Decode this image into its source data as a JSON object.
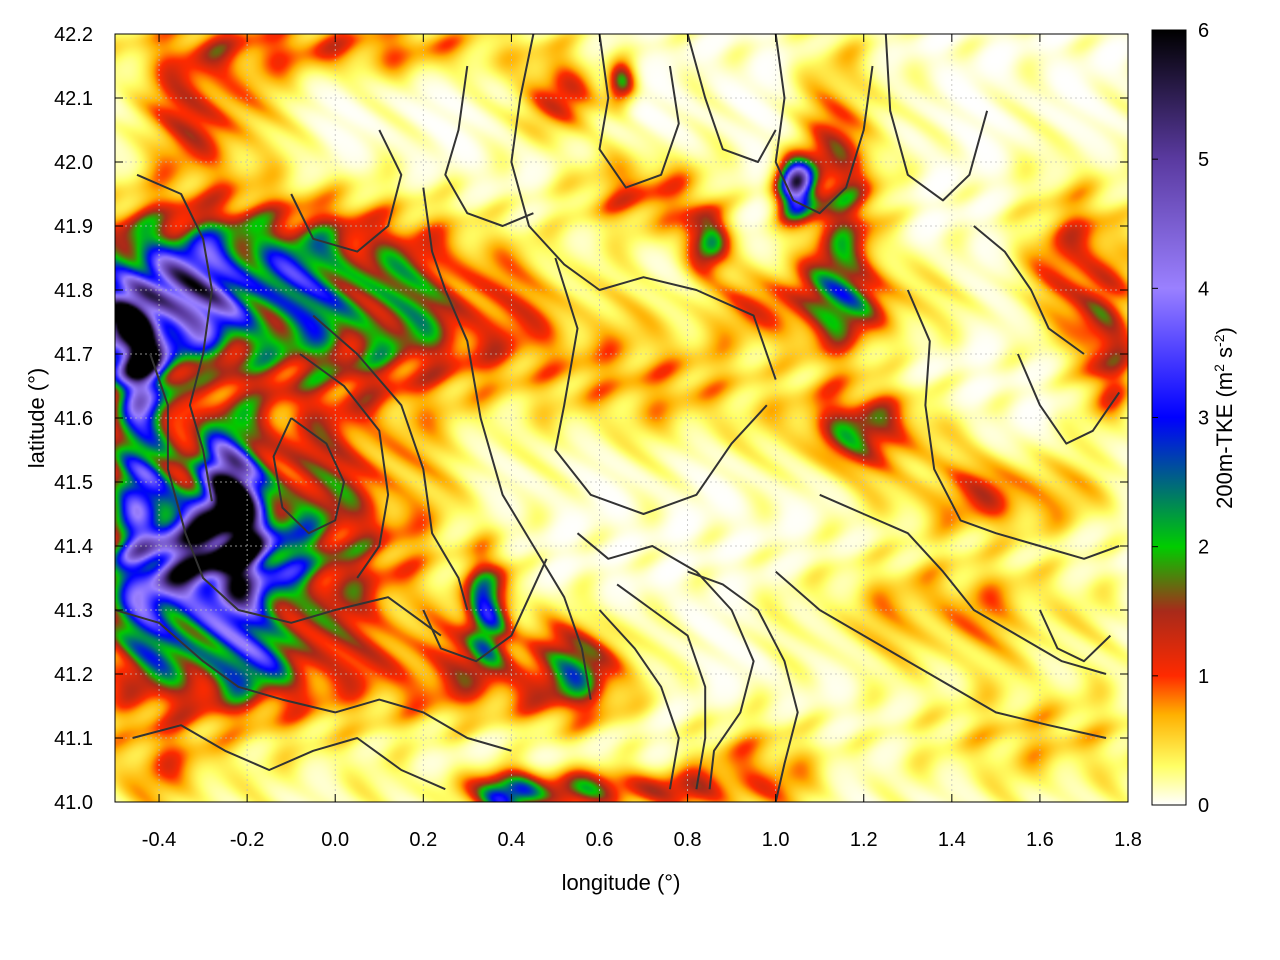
{
  "chart_data": {
    "type": "heatmap",
    "xlabel": "longitude (°)",
    "ylabel": "latitude (°)",
    "xlim": [
      -0.5,
      1.8
    ],
    "ylim": [
      41.0,
      42.2
    ],
    "xticks": [
      -0.4,
      -0.2,
      0.0,
      0.2,
      0.4,
      0.6,
      0.8,
      1.0,
      1.2,
      1.4,
      1.6,
      1.8
    ],
    "xtick_labels": [
      "-0.4",
      "-0.2",
      "0.0",
      "0.2",
      "0.4",
      "0.6",
      "0.8",
      "1.0",
      "1.2",
      "1.4",
      "1.6",
      "1.8"
    ],
    "yticks": [
      41.0,
      41.1,
      41.2,
      41.3,
      41.4,
      41.5,
      41.6,
      41.7,
      41.8,
      41.9,
      42.0,
      42.1,
      42.2
    ],
    "ytick_labels": [
      "41.0",
      "41.1",
      "41.2",
      "41.3",
      "41.4",
      "41.5",
      "41.6",
      "41.7",
      "41.8",
      "41.9",
      "42.0",
      "42.1",
      "42.2"
    ],
    "grid": true,
    "colorbar": {
      "label_main": "200m-TKE (m",
      "label_sup1": "2",
      "label_mid": " s",
      "label_sup2": "-2",
      "label_end": ")",
      "range": [
        0,
        6
      ],
      "ticks": [
        0,
        1,
        2,
        3,
        4,
        5,
        6
      ],
      "tick_labels": [
        "0",
        "1",
        "2",
        "3",
        "4",
        "5",
        "6"
      ],
      "stops": [
        {
          "v": 0.0,
          "c": "#ffffff"
        },
        {
          "v": 0.3,
          "c": "#ffff66"
        },
        {
          "v": 0.7,
          "c": "#ffb000"
        },
        {
          "v": 1.0,
          "c": "#ff2a00"
        },
        {
          "v": 1.5,
          "c": "#a82a1a"
        },
        {
          "v": 2.0,
          "c": "#00cc00"
        },
        {
          "v": 3.0,
          "c": "#0000ff"
        },
        {
          "v": 4.0,
          "c": "#9a80ff"
        },
        {
          "v": 5.0,
          "c": "#5a3aa0"
        },
        {
          "v": 6.0,
          "c": "#000000"
        }
      ]
    },
    "field_blobs": [
      {
        "lon": -0.46,
        "lat": 41.72,
        "a": 5.8,
        "rx": 0.04,
        "ry": 0.05
      },
      {
        "lon": -0.24,
        "lat": 41.46,
        "a": 5.6,
        "rx": 0.05,
        "ry": 0.08
      },
      {
        "lon": -0.37,
        "lat": 41.78,
        "a": 3.2,
        "rx": 0.12,
        "ry": 0.06
      },
      {
        "lon": -0.18,
        "lat": 41.85,
        "a": 2.0,
        "rx": 0.28,
        "ry": 0.06
      },
      {
        "lon": 0.05,
        "lat": 41.74,
        "a": 1.6,
        "rx": 0.32,
        "ry": 0.07
      },
      {
        "lon": -0.28,
        "lat": 41.38,
        "a": 4.0,
        "rx": 0.12,
        "ry": 0.06
      },
      {
        "lon": -0.43,
        "lat": 41.55,
        "a": 3.0,
        "rx": 0.05,
        "ry": 0.15
      },
      {
        "lon": -0.4,
        "lat": 41.28,
        "a": 1.8,
        "rx": 0.1,
        "ry": 0.1
      },
      {
        "lon": -0.05,
        "lat": 41.42,
        "a": 1.5,
        "rx": 0.18,
        "ry": 0.18
      },
      {
        "lon": -0.2,
        "lat": 41.22,
        "a": 2.0,
        "rx": 0.1,
        "ry": 0.05
      },
      {
        "lon": -0.3,
        "lat": 42.08,
        "a": 1.2,
        "rx": 0.1,
        "ry": 0.08
      },
      {
        "lon": 0.35,
        "lat": 41.3,
        "a": 3.2,
        "rx": 0.03,
        "ry": 0.05
      },
      {
        "lon": 0.55,
        "lat": 41.2,
        "a": 1.8,
        "rx": 0.08,
        "ry": 0.05
      },
      {
        "lon": 0.4,
        "lat": 41.01,
        "a": 3.5,
        "rx": 0.04,
        "ry": 0.02
      },
      {
        "lon": 0.6,
        "lat": 41.02,
        "a": 1.6,
        "rx": 0.2,
        "ry": 0.02
      },
      {
        "lon": 1.05,
        "lat": 41.96,
        "a": 4.5,
        "rx": 0.03,
        "ry": 0.03
      },
      {
        "lon": 1.15,
        "lat": 41.92,
        "a": 1.5,
        "rx": 0.06,
        "ry": 0.15
      },
      {
        "lon": 0.84,
        "lat": 41.88,
        "a": 2.8,
        "rx": 0.03,
        "ry": 0.03
      },
      {
        "lon": 1.1,
        "lat": 41.78,
        "a": 1.3,
        "rx": 0.15,
        "ry": 0.04
      },
      {
        "lon": 1.2,
        "lat": 41.58,
        "a": 1.6,
        "rx": 0.1,
        "ry": 0.04
      },
      {
        "lon": 1.75,
        "lat": 41.72,
        "a": 1.6,
        "rx": 0.04,
        "ry": 0.08
      },
      {
        "lon": 1.68,
        "lat": 41.85,
        "a": 1.0,
        "rx": 0.08,
        "ry": 0.08
      },
      {
        "lon": 0.5,
        "lat": 42.1,
        "a": 1.5,
        "rx": 0.05,
        "ry": 0.04
      },
      {
        "lon": 0.65,
        "lat": 42.12,
        "a": 2.0,
        "rx": 0.02,
        "ry": 0.02
      },
      {
        "lon": 0.0,
        "lat": 42.18,
        "a": 0.9,
        "rx": 0.3,
        "ry": 0.03
      },
      {
        "lon": 0.7,
        "lat": 41.95,
        "a": 1.0,
        "rx": 0.1,
        "ry": 0.04
      },
      {
        "lon": 1.5,
        "lat": 41.48,
        "a": 1.0,
        "rx": 0.15,
        "ry": 0.04
      },
      {
        "lon": 0.3,
        "lat": 41.2,
        "a": 1.0,
        "rx": 0.15,
        "ry": 0.05
      },
      {
        "lon": 0.95,
        "lat": 41.05,
        "a": 0.8,
        "rx": 0.1,
        "ry": 0.05
      },
      {
        "lon": -0.4,
        "lat": 41.05,
        "a": 0.6,
        "rx": 0.1,
        "ry": 0.05
      },
      {
        "lon": 1.4,
        "lat": 41.3,
        "a": 0.7,
        "rx": 0.2,
        "ry": 0.06
      },
      {
        "lon": 1.6,
        "lat": 41.1,
        "a": 0.5,
        "rx": 0.2,
        "ry": 0.06
      },
      {
        "lon": 0.75,
        "lat": 41.65,
        "a": 0.6,
        "rx": 0.2,
        "ry": 0.06
      }
    ],
    "contours": [
      [
        [
          -0.05,
          41.76
        ],
        [
          0.05,
          41.7
        ],
        [
          0.15,
          41.62
        ],
        [
          0.2,
          41.52
        ],
        [
          0.22,
          41.42
        ],
        [
          0.28,
          41.35
        ],
        [
          0.3,
          41.3
        ]
      ],
      [
        [
          -0.08,
          41.7
        ],
        [
          0.02,
          41.65
        ],
        [
          0.1,
          41.58
        ],
        [
          0.12,
          41.48
        ],
        [
          0.1,
          41.4
        ],
        [
          0.05,
          41.35
        ]
      ],
      [
        [
          -0.45,
          41.98
        ],
        [
          -0.35,
          41.95
        ],
        [
          -0.3,
          41.88
        ],
        [
          -0.28,
          41.8
        ],
        [
          -0.3,
          41.7
        ],
        [
          -0.33,
          41.62
        ],
        [
          -0.3,
          41.55
        ],
        [
          -0.28,
          41.47
        ]
      ],
      [
        [
          -0.42,
          41.7
        ],
        [
          -0.38,
          41.62
        ],
        [
          -0.38,
          41.52
        ],
        [
          -0.34,
          41.42
        ],
        [
          -0.3,
          41.35
        ],
        [
          -0.22,
          41.3
        ],
        [
          -0.1,
          41.28
        ],
        [
          0.0,
          41.3
        ],
        [
          0.12,
          41.32
        ],
        [
          0.24,
          41.26
        ]
      ],
      [
        [
          -0.5,
          41.3
        ],
        [
          -0.4,
          41.28
        ],
        [
          -0.3,
          41.22
        ],
        [
          -0.22,
          41.18
        ],
        [
          -0.12,
          41.16
        ],
        [
          0.0,
          41.14
        ],
        [
          0.1,
          41.16
        ],
        [
          0.2,
          41.14
        ],
        [
          0.3,
          41.1
        ],
        [
          0.4,
          41.08
        ]
      ],
      [
        [
          -0.46,
          41.1
        ],
        [
          -0.35,
          41.12
        ],
        [
          -0.25,
          41.08
        ],
        [
          -0.15,
          41.05
        ],
        [
          -0.05,
          41.08
        ],
        [
          0.05,
          41.1
        ],
        [
          0.15,
          41.05
        ],
        [
          0.25,
          41.02
        ]
      ],
      [
        [
          0.2,
          41.96
        ],
        [
          0.22,
          41.86
        ],
        [
          0.25,
          41.8
        ],
        [
          0.3,
          41.72
        ],
        [
          0.33,
          41.6
        ],
        [
          0.38,
          41.48
        ],
        [
          0.45,
          41.4
        ],
        [
          0.52,
          41.32
        ],
        [
          0.56,
          41.24
        ],
        [
          0.58,
          41.16
        ]
      ],
      [
        [
          0.45,
          42.2
        ],
        [
          0.42,
          42.1
        ],
        [
          0.4,
          42.0
        ],
        [
          0.44,
          41.9
        ],
        [
          0.52,
          41.84
        ],
        [
          0.6,
          41.8
        ],
        [
          0.7,
          41.82
        ],
        [
          0.82,
          41.8
        ],
        [
          0.95,
          41.76
        ],
        [
          1.0,
          41.66
        ]
      ],
      [
        [
          0.5,
          41.85
        ],
        [
          0.55,
          41.74
        ],
        [
          0.52,
          41.62
        ],
        [
          0.5,
          41.55
        ],
        [
          0.58,
          41.48
        ],
        [
          0.7,
          41.45
        ],
        [
          0.82,
          41.48
        ],
        [
          0.9,
          41.56
        ],
        [
          0.98,
          41.62
        ]
      ],
      [
        [
          0.55,
          41.42
        ],
        [
          0.62,
          41.38
        ],
        [
          0.72,
          41.4
        ],
        [
          0.82,
          41.36
        ],
        [
          0.9,
          41.3
        ],
        [
          0.95,
          41.22
        ],
        [
          0.92,
          41.14
        ],
        [
          0.86,
          41.08
        ],
        [
          0.85,
          41.02
        ]
      ],
      [
        [
          0.8,
          41.36
        ],
        [
          0.88,
          41.34
        ],
        [
          0.96,
          41.3
        ],
        [
          1.02,
          41.22
        ],
        [
          1.05,
          41.14
        ],
        [
          1.02,
          41.06
        ],
        [
          1.0,
          41.0
        ]
      ],
      [
        [
          0.6,
          41.3
        ],
        [
          0.68,
          41.24
        ],
        [
          0.74,
          41.18
        ],
        [
          0.78,
          41.1
        ],
        [
          0.76,
          41.02
        ]
      ],
      [
        [
          0.64,
          41.34
        ],
        [
          0.72,
          41.3
        ],
        [
          0.8,
          41.26
        ],
        [
          0.84,
          41.18
        ],
        [
          0.84,
          41.1
        ],
        [
          0.82,
          41.02
        ]
      ],
      [
        [
          1.0,
          42.2
        ],
        [
          1.02,
          42.1
        ],
        [
          1.0,
          42.0
        ],
        [
          1.04,
          41.94
        ],
        [
          1.1,
          41.92
        ],
        [
          1.16,
          41.96
        ],
        [
          1.2,
          42.05
        ],
        [
          1.22,
          42.15
        ]
      ],
      [
        [
          1.25,
          42.2
        ],
        [
          1.26,
          42.08
        ],
        [
          1.3,
          41.98
        ],
        [
          1.38,
          41.94
        ],
        [
          1.44,
          41.98
        ],
        [
          1.48,
          42.08
        ]
      ],
      [
        [
          1.3,
          41.8
        ],
        [
          1.35,
          41.72
        ],
        [
          1.34,
          41.62
        ],
        [
          1.36,
          41.52
        ],
        [
          1.42,
          41.44
        ],
        [
          1.5,
          41.42
        ],
        [
          1.6,
          41.4
        ],
        [
          1.7,
          41.38
        ],
        [
          1.78,
          41.4
        ]
      ],
      [
        [
          1.1,
          41.48
        ],
        [
          1.2,
          41.45
        ],
        [
          1.3,
          41.42
        ],
        [
          1.38,
          41.36
        ],
        [
          1.45,
          41.3
        ],
        [
          1.55,
          41.26
        ],
        [
          1.65,
          41.22
        ],
        [
          1.75,
          41.2
        ]
      ],
      [
        [
          1.0,
          41.36
        ],
        [
          1.1,
          41.3
        ],
        [
          1.2,
          41.26
        ],
        [
          1.3,
          41.22
        ],
        [
          1.4,
          41.18
        ],
        [
          1.5,
          41.14
        ],
        [
          1.62,
          41.12
        ],
        [
          1.75,
          41.1
        ]
      ],
      [
        [
          1.55,
          41.7
        ],
        [
          1.6,
          41.62
        ],
        [
          1.66,
          41.56
        ],
        [
          1.72,
          41.58
        ],
        [
          1.78,
          41.64
        ]
      ],
      [
        [
          1.45,
          41.9
        ],
        [
          1.52,
          41.86
        ],
        [
          1.58,
          41.8
        ],
        [
          1.62,
          41.74
        ],
        [
          1.7,
          41.7
        ]
      ],
      [
        [
          0.1,
          42.05
        ],
        [
          0.15,
          41.98
        ],
        [
          0.12,
          41.9
        ],
        [
          0.05,
          41.86
        ],
        [
          -0.05,
          41.88
        ],
        [
          -0.1,
          41.95
        ]
      ],
      [
        [
          0.3,
          42.15
        ],
        [
          0.28,
          42.05
        ],
        [
          0.25,
          41.98
        ],
        [
          0.3,
          41.92
        ],
        [
          0.38,
          41.9
        ],
        [
          0.45,
          41.92
        ]
      ],
      [
        [
          0.6,
          42.2
        ],
        [
          0.62,
          42.1
        ],
        [
          0.6,
          42.02
        ],
        [
          0.66,
          41.96
        ],
        [
          0.74,
          41.98
        ],
        [
          0.78,
          42.06
        ],
        [
          0.76,
          42.15
        ]
      ],
      [
        [
          0.8,
          42.2
        ],
        [
          0.84,
          42.1
        ],
        [
          0.88,
          42.02
        ],
        [
          0.96,
          42.0
        ],
        [
          1.0,
          42.05
        ]
      ],
      [
        [
          -0.1,
          41.6
        ],
        [
          -0.02,
          41.56
        ],
        [
          0.02,
          41.5
        ],
        [
          0.0,
          41.44
        ],
        [
          -0.06,
          41.42
        ],
        [
          -0.12,
          41.46
        ],
        [
          -0.14,
          41.54
        ],
        [
          -0.1,
          41.6
        ]
      ],
      [
        [
          0.2,
          41.3
        ],
        [
          0.24,
          41.24
        ],
        [
          0.32,
          41.22
        ],
        [
          0.4,
          41.26
        ],
        [
          0.44,
          41.32
        ],
        [
          0.48,
          41.38
        ]
      ],
      [
        [
          1.6,
          41.3
        ],
        [
          1.64,
          41.24
        ],
        [
          1.7,
          41.22
        ],
        [
          1.76,
          41.26
        ]
      ]
    ]
  }
}
